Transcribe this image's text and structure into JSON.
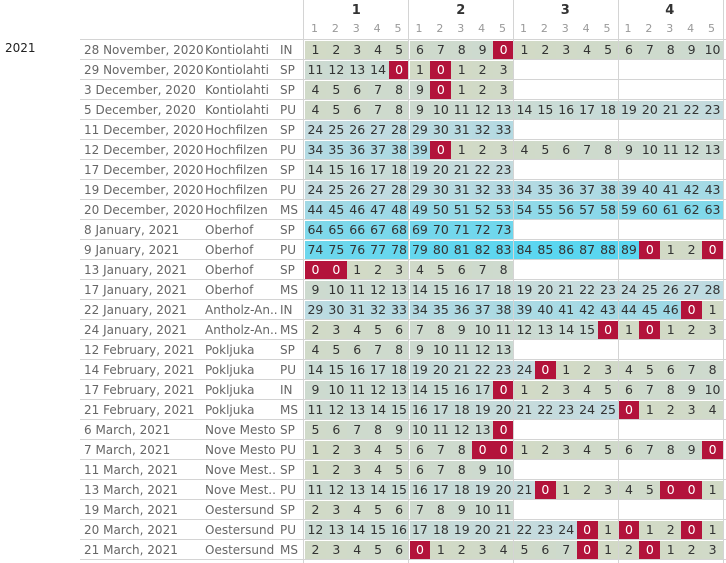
{
  "header": {
    "groups": [
      "1",
      "2",
      "3",
      "4"
    ],
    "subs": [
      "1",
      "2",
      "3",
      "4",
      "5"
    ]
  },
  "year": "2021",
  "colors": {
    "zero": "#b3133b",
    "low": "#d2dac6",
    "mid": "#c3dbe0",
    "high": "#5ad6f0"
  },
  "rows": [
    {
      "date": "28 November, 2020",
      "location": "Kontiolahti",
      "type": "IN",
      "cells": [
        1,
        2,
        3,
        4,
        5,
        6,
        7,
        8,
        9,
        0,
        1,
        2,
        3,
        4,
        5,
        6,
        7,
        8,
        9,
        10
      ]
    },
    {
      "date": "29 November, 2020",
      "location": "Kontiolahti",
      "type": "SP",
      "cells": [
        11,
        12,
        13,
        14,
        0,
        1,
        0,
        1,
        2,
        3
      ]
    },
    {
      "date": "3 December, 2020",
      "location": "Kontiolahti",
      "type": "SP",
      "cells": [
        4,
        5,
        6,
        7,
        8,
        9,
        0,
        1,
        2,
        3
      ]
    },
    {
      "date": "5 December, 2020",
      "location": "Kontiolahti",
      "type": "PU",
      "cells": [
        4,
        5,
        6,
        7,
        8,
        9,
        10,
        11,
        12,
        13,
        14,
        15,
        16,
        17,
        18,
        19,
        20,
        21,
        22,
        23
      ]
    },
    {
      "date": "11 December, 2020",
      "location": "Hochfilzen",
      "type": "SP",
      "cells": [
        24,
        25,
        26,
        27,
        28,
        29,
        30,
        31,
        32,
        33
      ]
    },
    {
      "date": "12 December, 2020",
      "location": "Hochfilzen",
      "type": "PU",
      "cells": [
        34,
        35,
        36,
        37,
        38,
        39,
        0,
        1,
        2,
        3,
        4,
        5,
        6,
        7,
        8,
        9,
        10,
        11,
        12,
        13
      ]
    },
    {
      "date": "17 December, 2020",
      "location": "Hochfilzen",
      "type": "SP",
      "cells": [
        14,
        15,
        16,
        17,
        18,
        19,
        20,
        21,
        22,
        23
      ]
    },
    {
      "date": "19 December, 2020",
      "location": "Hochfilzen",
      "type": "PU",
      "cells": [
        24,
        25,
        26,
        27,
        28,
        29,
        30,
        31,
        32,
        33,
        34,
        35,
        36,
        37,
        38,
        39,
        40,
        41,
        42,
        43
      ]
    },
    {
      "date": "20 December, 2020",
      "location": "Hochfilzen",
      "type": "MS",
      "cells": [
        44,
        45,
        46,
        47,
        48,
        49,
        50,
        51,
        52,
        53,
        54,
        55,
        56,
        57,
        58,
        59,
        60,
        61,
        62,
        63
      ]
    },
    {
      "date": "8 January, 2021",
      "location": "Oberhof",
      "type": "SP",
      "cells": [
        64,
        65,
        66,
        67,
        68,
        69,
        70,
        71,
        72,
        73
      ]
    },
    {
      "date": "9 January, 2021",
      "location": "Oberhof",
      "type": "PU",
      "cells": [
        74,
        75,
        76,
        77,
        78,
        79,
        80,
        81,
        82,
        83,
        84,
        85,
        86,
        87,
        88,
        89,
        0,
        1,
        2,
        0
      ]
    },
    {
      "date": "13 January, 2021",
      "location": "Oberhof",
      "type": "SP",
      "cells": [
        0,
        0,
        1,
        2,
        3,
        4,
        5,
        6,
        7,
        8
      ]
    },
    {
      "date": "17 January, 2021",
      "location": "Oberhof",
      "type": "MS",
      "cells": [
        9,
        10,
        11,
        12,
        13,
        14,
        15,
        16,
        17,
        18,
        19,
        20,
        21,
        22,
        23,
        24,
        25,
        26,
        27,
        28
      ]
    },
    {
      "date": "22 January, 2021",
      "location": "Antholz-An..",
      "type": "IN",
      "cells": [
        29,
        30,
        31,
        32,
        33,
        34,
        35,
        36,
        37,
        38,
        39,
        40,
        41,
        42,
        43,
        44,
        45,
        46,
        0,
        1
      ]
    },
    {
      "date": "24 January, 2021",
      "location": "Antholz-An..",
      "type": "MS",
      "cells": [
        2,
        3,
        4,
        5,
        6,
        7,
        8,
        9,
        10,
        11,
        12,
        13,
        14,
        15,
        0,
        1,
        0,
        1,
        2,
        3
      ]
    },
    {
      "date": "12 February, 2021",
      "location": "Pokljuka",
      "type": "SP",
      "cells": [
        4,
        5,
        6,
        7,
        8,
        9,
        10,
        11,
        12,
        13
      ]
    },
    {
      "date": "14 February, 2021",
      "location": "Pokljuka",
      "type": "PU",
      "cells": [
        14,
        15,
        16,
        17,
        18,
        19,
        20,
        21,
        22,
        23,
        24,
        0,
        1,
        2,
        3,
        4,
        5,
        6,
        7,
        8
      ]
    },
    {
      "date": "17 February, 2021",
      "location": "Pokljuka",
      "type": "IN",
      "cells": [
        9,
        10,
        11,
        12,
        13,
        14,
        15,
        16,
        17,
        0,
        1,
        2,
        3,
        4,
        5,
        6,
        7,
        8,
        9,
        10
      ]
    },
    {
      "date": "21 February, 2021",
      "location": "Pokljuka",
      "type": "MS",
      "cells": [
        11,
        12,
        13,
        14,
        15,
        16,
        17,
        18,
        19,
        20,
        21,
        22,
        23,
        24,
        25,
        0,
        1,
        2,
        3,
        4
      ]
    },
    {
      "date": "6 March, 2021",
      "location": "Nove Mesto",
      "type": "SP",
      "cells": [
        5,
        6,
        7,
        8,
        9,
        10,
        11,
        12,
        13,
        0
      ]
    },
    {
      "date": "7 March, 2021",
      "location": "Nove Mesto",
      "type": "PU",
      "cells": [
        1,
        2,
        3,
        4,
        5,
        6,
        7,
        8,
        0,
        0,
        1,
        2,
        3,
        4,
        5,
        6,
        7,
        8,
        9,
        0
      ]
    },
    {
      "date": "11 March, 2021",
      "location": "Nove Mest..",
      "type": "SP",
      "cells": [
        1,
        2,
        3,
        4,
        5,
        6,
        7,
        8,
        9,
        10
      ]
    },
    {
      "date": "13 March, 2021",
      "location": "Nove Mest..",
      "type": "PU",
      "cells": [
        11,
        12,
        13,
        14,
        15,
        16,
        17,
        18,
        19,
        20,
        21,
        0,
        1,
        2,
        3,
        4,
        5,
        0,
        0,
        1
      ]
    },
    {
      "date": "19 March, 2021",
      "location": "Oestersund",
      "type": "SP",
      "cells": [
        2,
        3,
        4,
        5,
        6,
        7,
        8,
        9,
        10,
        11
      ]
    },
    {
      "date": "20 March, 2021",
      "location": "Oestersund",
      "type": "PU",
      "cells": [
        12,
        13,
        14,
        15,
        16,
        17,
        18,
        19,
        20,
        21,
        22,
        23,
        24,
        0,
        1,
        0,
        1,
        2,
        0,
        1
      ]
    },
    {
      "date": "21 March, 2021",
      "location": "Oestersund",
      "type": "MS",
      "cells": [
        2,
        3,
        4,
        5,
        6,
        0,
        1,
        2,
        3,
        4,
        5,
        6,
        7,
        0,
        1,
        2,
        0,
        1,
        2,
        3
      ]
    }
  ]
}
